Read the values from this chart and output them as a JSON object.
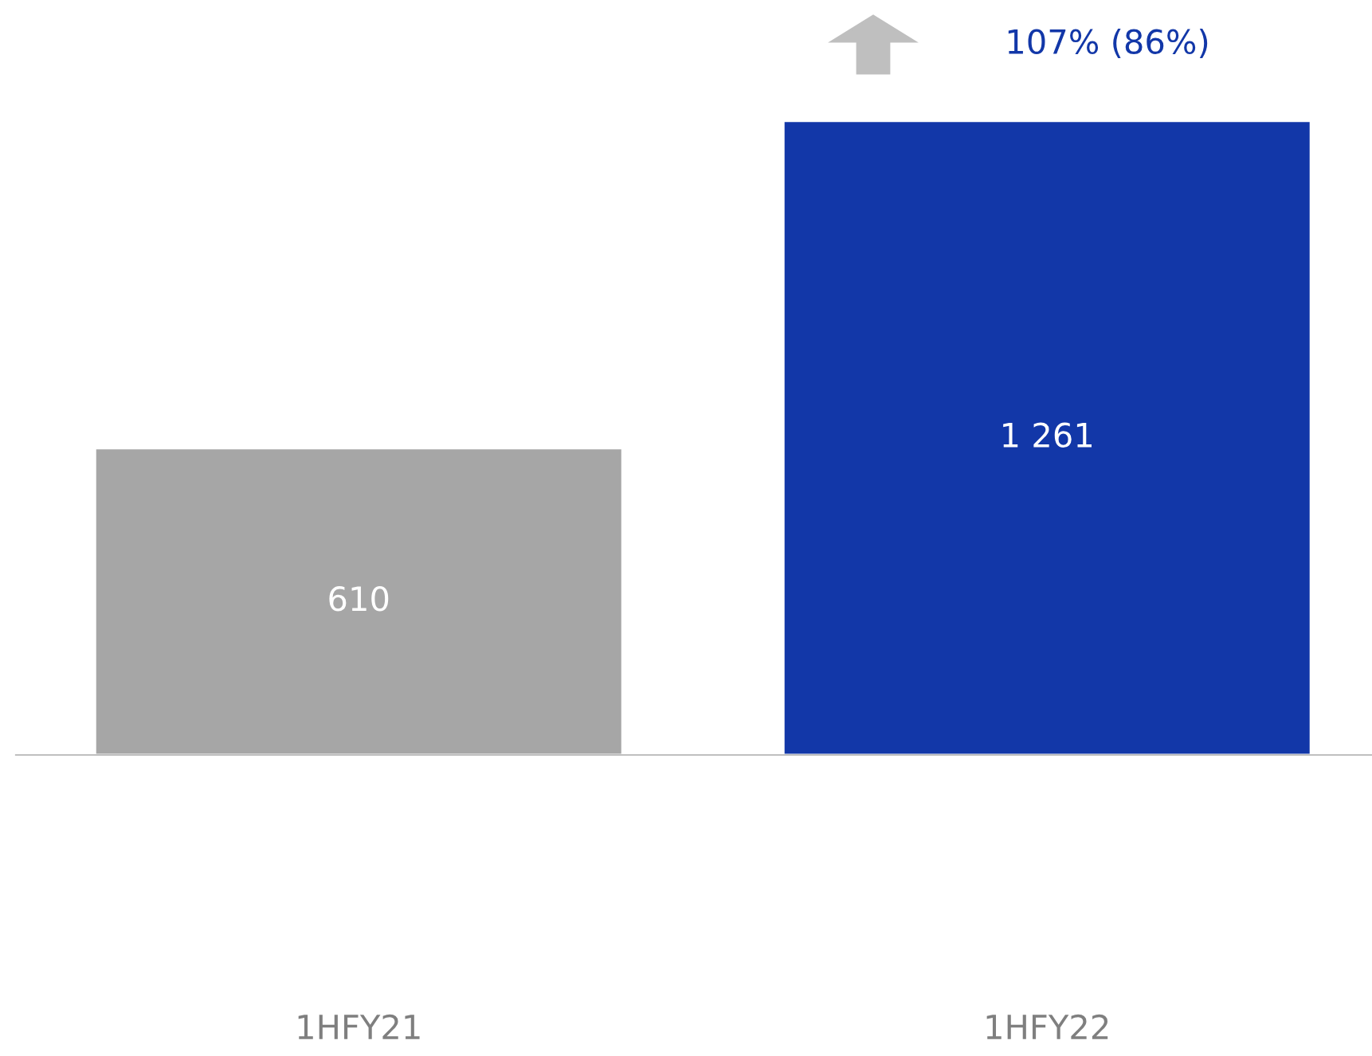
{
  "chart_data": {
    "type": "bar",
    "categories": [
      "1HFY21",
      "1HFY22"
    ],
    "values": [
      610,
      1261
    ],
    "colors": [
      "#a6a6a6",
      "#1237a8"
    ],
    "value_labels": [
      "610",
      "1 261"
    ],
    "grid": false,
    "legend": false,
    "annotations": [
      "107% (86%)"
    ]
  }
}
